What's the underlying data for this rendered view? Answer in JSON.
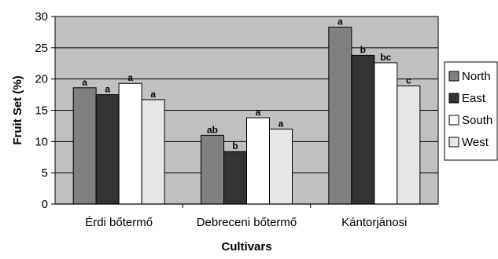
{
  "chart_data": {
    "type": "bar",
    "xlabel": "Cultivars",
    "ylabel": "Fruit Set (%)",
    "categories": [
      "Érdi bőtermő",
      "Debreceni bőtermő",
      "Kántorjánosi"
    ],
    "yticks": [
      "0",
      "5",
      "10",
      "15",
      "20",
      "25",
      "30"
    ],
    "ylim": [
      0,
      30
    ],
    "grid": true,
    "legend_position": "right",
    "plot_background": "#c0c0c0",
    "series": [
      {
        "name": "North",
        "color": "#808080",
        "values": [
          18.6,
          11.0,
          28.3
        ],
        "labels": [
          "a",
          "ab",
          "a"
        ]
      },
      {
        "name": "East",
        "color": "#333333",
        "values": [
          17.5,
          8.4,
          23.8
        ],
        "labels": [
          "a",
          "b",
          "b"
        ]
      },
      {
        "name": "South",
        "color": "#ffffff",
        "values": [
          19.3,
          13.8,
          22.6
        ],
        "labels": [
          "a",
          "a",
          "bc"
        ]
      },
      {
        "name": "West",
        "color": "#e6e6e6",
        "values": [
          16.7,
          12.0,
          18.9
        ],
        "labels": [
          "a",
          "a",
          "c"
        ]
      }
    ]
  }
}
